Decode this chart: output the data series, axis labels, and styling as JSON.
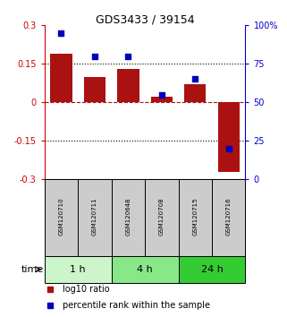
{
  "title": "GDS3433 / 39154",
  "samples": [
    "GSM120710",
    "GSM120711",
    "GSM120648",
    "GSM120708",
    "GSM120715",
    "GSM120716"
  ],
  "log10_ratio": [
    0.19,
    0.1,
    0.13,
    0.02,
    0.07,
    -0.27
  ],
  "percentile_rank": [
    95,
    80,
    80,
    55,
    65,
    20
  ],
  "ylim_left": [
    -0.3,
    0.3
  ],
  "ylim_right": [
    0,
    100
  ],
  "yticks_left": [
    -0.3,
    -0.15,
    0,
    0.15,
    0.3
  ],
  "ytick_labels_left": [
    "-0.3",
    "-0.15",
    "0",
    "0.15",
    "0.3"
  ],
  "yticks_right": [
    0,
    25,
    50,
    75,
    100
  ],
  "ytick_labels_right": [
    "0",
    "25",
    "50",
    "75",
    "100%"
  ],
  "dotted_lines": [
    0.15,
    -0.15
  ],
  "zero_line": 0,
  "bar_color": "#aa1111",
  "square_color": "#0000bb",
  "time_groups": [
    {
      "label": "1 h",
      "indices": [
        0,
        1
      ],
      "color": "#ccf5cc"
    },
    {
      "label": "4 h",
      "indices": [
        2,
        3
      ],
      "color": "#88e888"
    },
    {
      "label": "24 h",
      "indices": [
        4,
        5
      ],
      "color": "#33cc33"
    }
  ],
  "left_axis_color": "#cc0000",
  "right_axis_color": "#0000cc",
  "legend_red_label": "log10 ratio",
  "legend_blue_label": "percentile rank within the sample",
  "time_label": "time",
  "background_color": "#ffffff",
  "label_box_color": "#cccccc",
  "title_fontsize": 9,
  "tick_fontsize": 7,
  "sample_fontsize": 5,
  "time_fontsize": 8,
  "legend_fontsize": 7
}
